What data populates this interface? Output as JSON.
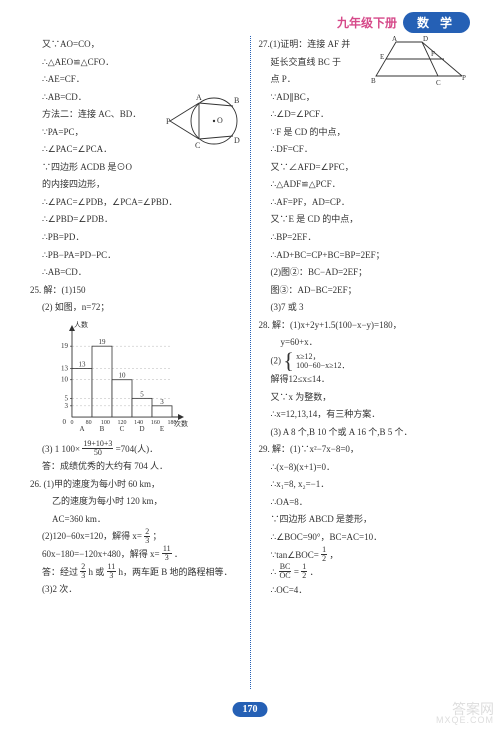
{
  "header": {
    "grade": "九年级下册",
    "subject": "数 学"
  },
  "page_number": "170",
  "watermark": {
    "top": "答案网",
    "bottom": "MXQE.COM"
  },
  "colors": {
    "accent_pink": "#d64a8a",
    "accent_blue": "#2560b5",
    "text": "#323232",
    "bg": "#ffffff",
    "wm": "#cfcfcf"
  },
  "left": {
    "l01": "又∵AO=CO，",
    "l02": "∴△AEO≌△CFO．",
    "l03": "∴AE=CF．",
    "l04": "∴AB=CD．",
    "l05": "方法二：连接 AC、BD．",
    "l06": "∵PA=PC，",
    "l07": "∴∠PAC=∠PCA．",
    "l08": "∵四边形 ACDB 是⊙O",
    "l09": "的内接四边形，",
    "l10": "∴∠PAC=∠PDB，∠PCA=∠PBD．",
    "l11": "∴∠PBD=∠PDB．",
    "l12": "∴PB=PD．",
    "l13": "∴PB−PA=PD−PC．",
    "l14": "∴AB=CD．",
    "q25": "25. 解：(1)150",
    "q25b": "(2) 如图，n=72；",
    "histogram": {
      "y_label": "人数",
      "x_label": "次数",
      "y_ticks": [
        3,
        5,
        10,
        13,
        19
      ],
      "x_ticks": [
        0,
        80,
        100,
        120,
        140,
        160,
        180
      ],
      "cat_labels": [
        "A",
        "B",
        "C",
        "D",
        "E"
      ],
      "bars": [
        13,
        19,
        10,
        5,
        3
      ],
      "bar_color": "#ffffff",
      "bar_border": "#323232",
      "axis_color": "#323232",
      "ymax": 22,
      "fontsize": 7
    },
    "q25c_a": "(3) 1 100×",
    "q25c_num": "19+10+3",
    "q25c_den": "50",
    "q25c_b": "=704(人)．",
    "q25d": "答：成绩优秀的大约有 704 人．",
    "q26a": "26. (1)甲的速度为每小时 60 km，",
    "q26b": "乙的速度为每小时 120 km，",
    "q26c": "AC=360 km．",
    "q26d_a": "(2)120−60x=120，解得 x=",
    "q26d_n": "2",
    "q26d_d": "3",
    "q26d_b": "；",
    "q26e_a": "60x−180=−120x+480，解得 x=",
    "q26e_n": "11",
    "q26e_d": "3",
    "q26e_b": "．",
    "q26f_a": "答：经过",
    "q26f_n1": "2",
    "q26f_d1": "3",
    "q26f_b": " h 或",
    "q26f_n2": "11",
    "q26f_d2": "3",
    "q26f_c": " h，两车距 B 地的路程相等．",
    "q26g": "(3)2 次．",
    "circle": {
      "labels": {
        "P": "P",
        "A": "A",
        "B": "B",
        "C": "C",
        "D": "D",
        "O": "O"
      },
      "stroke": "#323232"
    }
  },
  "right": {
    "q27a1": "27.(1)证明：连接 AF 并",
    "q27a2": "延长交直线 BC 于",
    "q27a3": "点 P．",
    "l01": "∵AD∥BC，",
    "l02": "∴∠D=∠PCF．",
    "l03": "∵F 是 CD 的中点，",
    "l04": "∴DF=CF．",
    "l05": "又∵∠AFD=∠PFC，",
    "l06": "∴△ADF≌△PCF．",
    "l07": "∴AF=PF，AD=CP．",
    "l08": "又∵E 是 CD 的中点，",
    "l09": "∴BP=2EF．",
    "l10": "∴AD+BC=CP+BC=BP=2EF；",
    "l11": "(2)图②：BC−AD=2EF；",
    "l12": "图③：AD−BC=2EF；",
    "l13": "(3)7 或 3",
    "q28a": "28. 解：(1)x+2y+1.5(100−x−y)=180，",
    "q28b": "y=60+x．",
    "q28c_top": "x≥12，",
    "q28c_bot": "100−60−x≥12．",
    "q28c_lbl": "(2)",
    "q28d": "解得12≤x≤14．",
    "q28e": "又∵x 为整数，",
    "q28f": "∴x=12,13,14，有三种方案．",
    "q28g": "(3) A 8 个,B 10 个或 A 16 个,B 5 个．",
    "q29a": "29. 解：(1)∵x²−7x−8=0，",
    "q29b": "∴(x−8)(x+1)=0．",
    "q29c": "∴x₁=8, x₂=−1．",
    "q29d": "∴OA=8．",
    "q29e": "∵四边形 ABCD 是菱形，",
    "q29f": "∴∠BOC=90°，BC=AC=10．",
    "q29g_a": "∵tan∠BOC=",
    "q29g_n": "1",
    "q29g_d": "2",
    "q29g_b": "，",
    "q29h_a": "∴",
    "q29h_n": "BC",
    "q29h_d": "OC",
    "q29h_b": "=",
    "q29h_n2": "1",
    "q29h_d2": "2",
    "q29h_c": "．",
    "q29i": "∴OC=4．",
    "trapezoid": {
      "labels": {
        "A": "A",
        "B": "B",
        "C": "C",
        "D": "D",
        "E": "E",
        "F": "F",
        "P": "P"
      },
      "stroke": "#323232"
    }
  }
}
